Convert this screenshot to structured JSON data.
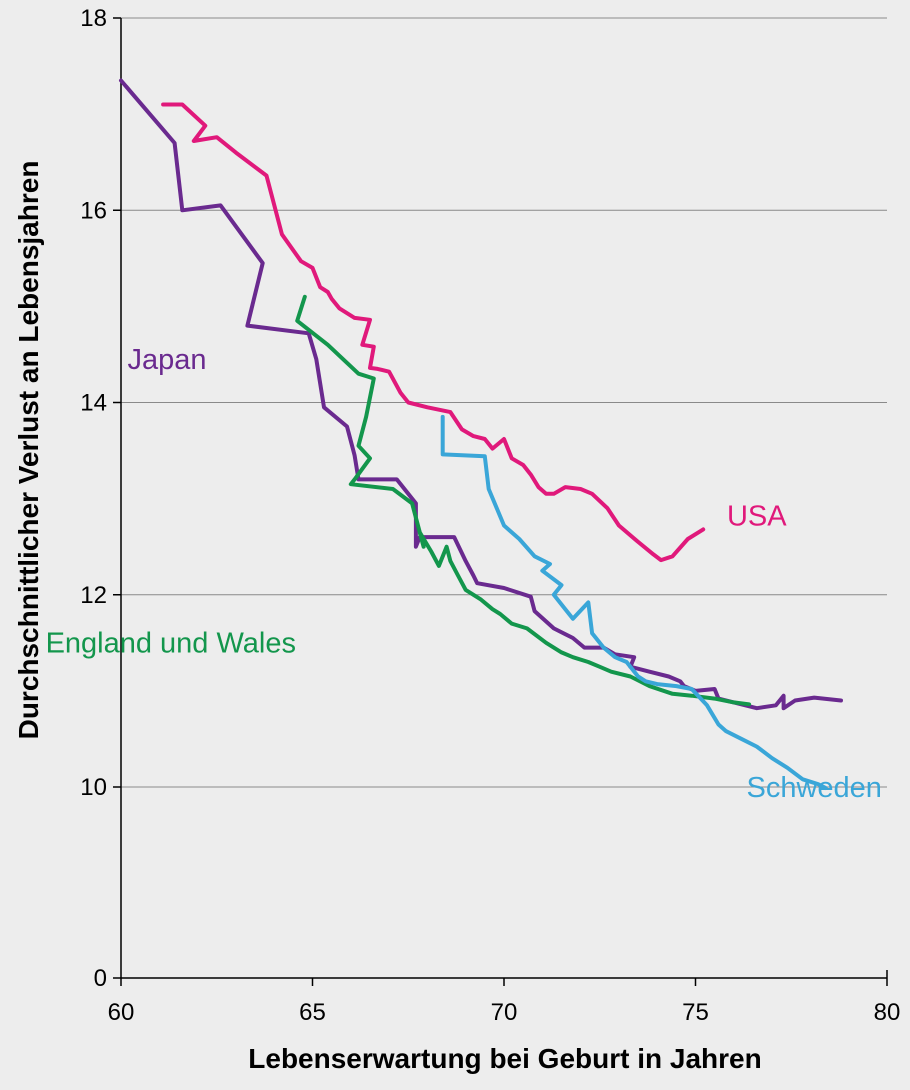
{
  "chart_data": {
    "type": "line",
    "title": "",
    "xlabel": "Lebenserwartung bei Geburt in Jahren",
    "ylabel": "Durchschnittlicher Verlust an Lebensjahren",
    "xlim": [
      60,
      80
    ],
    "ylim": [
      0,
      18
    ],
    "xticks": [
      "60",
      "65",
      "70",
      "75",
      "80"
    ],
    "yticks": [
      "0",
      "10",
      "12",
      "14",
      "16",
      "18"
    ],
    "y_axis_break": true,
    "grid": "horizontal",
    "legend": "inline labels",
    "series": [
      {
        "name": "USA",
        "color": "#e0197b",
        "points": [
          [
            61.1,
            17.1
          ],
          [
            61.6,
            17.1
          ],
          [
            62.2,
            16.88
          ],
          [
            61.9,
            16.72
          ],
          [
            62.5,
            16.76
          ],
          [
            63.0,
            16.6
          ],
          [
            63.8,
            16.36
          ],
          [
            64.2,
            15.75
          ],
          [
            64.7,
            15.47
          ],
          [
            65.0,
            15.4
          ],
          [
            65.2,
            15.2
          ],
          [
            65.4,
            15.15
          ],
          [
            65.5,
            15.08
          ],
          [
            65.7,
            14.98
          ],
          [
            66.1,
            14.88
          ],
          [
            66.5,
            14.86
          ],
          [
            66.3,
            14.6
          ],
          [
            66.6,
            14.58
          ],
          [
            66.5,
            14.36
          ],
          [
            66.7,
            14.35
          ],
          [
            67.0,
            14.32
          ],
          [
            67.3,
            14.1
          ],
          [
            67.5,
            14.0
          ],
          [
            68.0,
            13.95
          ],
          [
            68.6,
            13.9
          ],
          [
            68.9,
            13.72
          ],
          [
            69.2,
            13.65
          ],
          [
            69.5,
            13.62
          ],
          [
            69.7,
            13.52
          ],
          [
            70.0,
            13.62
          ],
          [
            70.2,
            13.42
          ],
          [
            70.5,
            13.35
          ],
          [
            70.7,
            13.25
          ],
          [
            70.9,
            13.12
          ],
          [
            71.1,
            13.05
          ],
          [
            71.3,
            13.05
          ],
          [
            71.6,
            13.12
          ],
          [
            72.0,
            13.1
          ],
          [
            72.3,
            13.05
          ],
          [
            72.7,
            12.9
          ],
          [
            73.0,
            12.72
          ],
          [
            73.5,
            12.55
          ],
          [
            73.9,
            12.42
          ],
          [
            74.1,
            12.36
          ],
          [
            74.4,
            12.4
          ],
          [
            74.8,
            12.58
          ],
          [
            75.2,
            12.68
          ]
        ]
      },
      {
        "name": "Japan",
        "color": "#6a2a8f",
        "points": [
          [
            60.0,
            17.35
          ],
          [
            61.4,
            16.7
          ],
          [
            61.6,
            16.0
          ],
          [
            62.6,
            16.05
          ],
          [
            63.7,
            15.45
          ],
          [
            63.3,
            14.8
          ],
          [
            64.9,
            14.72
          ],
          [
            65.1,
            14.45
          ],
          [
            65.3,
            13.95
          ],
          [
            65.9,
            13.75
          ],
          [
            66.1,
            13.45
          ],
          [
            66.2,
            13.2
          ],
          [
            67.2,
            13.2
          ],
          [
            67.7,
            12.95
          ],
          [
            67.7,
            12.5
          ],
          [
            67.8,
            12.6
          ],
          [
            68.7,
            12.6
          ],
          [
            69.0,
            12.35
          ],
          [
            69.2,
            12.2
          ],
          [
            69.3,
            12.12
          ],
          [
            70.0,
            12.07
          ],
          [
            70.7,
            11.98
          ],
          [
            70.8,
            11.83
          ],
          [
            71.3,
            11.65
          ],
          [
            71.8,
            11.55
          ],
          [
            72.1,
            11.45
          ],
          [
            72.6,
            11.45
          ],
          [
            72.9,
            11.38
          ],
          [
            73.4,
            11.35
          ],
          [
            73.3,
            11.25
          ],
          [
            73.8,
            11.2
          ],
          [
            74.3,
            11.15
          ],
          [
            74.6,
            11.1
          ],
          [
            74.7,
            11.05
          ],
          [
            75.0,
            11.0
          ],
          [
            75.5,
            11.02
          ],
          [
            75.6,
            10.92
          ],
          [
            76.0,
            10.88
          ],
          [
            76.6,
            10.82
          ],
          [
            77.1,
            10.85
          ],
          [
            77.3,
            10.95
          ],
          [
            77.3,
            10.82
          ],
          [
            77.6,
            10.9
          ],
          [
            78.1,
            10.93
          ],
          [
            78.8,
            10.9
          ]
        ]
      },
      {
        "name": "England und Wales",
        "color": "#13964c",
        "points": [
          [
            64.8,
            15.1
          ],
          [
            64.6,
            14.85
          ],
          [
            65.4,
            14.6
          ],
          [
            66.2,
            14.3
          ],
          [
            66.6,
            14.25
          ],
          [
            66.4,
            13.85
          ],
          [
            66.2,
            13.55
          ],
          [
            66.5,
            13.42
          ],
          [
            66.1,
            13.2
          ],
          [
            66.0,
            13.15
          ],
          [
            67.1,
            13.1
          ],
          [
            67.6,
            12.95
          ],
          [
            67.9,
            12.5
          ],
          [
            67.8,
            12.65
          ],
          [
            68.1,
            12.45
          ],
          [
            68.3,
            12.3
          ],
          [
            68.5,
            12.5
          ],
          [
            68.6,
            12.35
          ],
          [
            68.8,
            12.2
          ],
          [
            69.0,
            12.05
          ],
          [
            69.4,
            11.95
          ],
          [
            69.7,
            11.85
          ],
          [
            69.9,
            11.8
          ],
          [
            70.2,
            11.7
          ],
          [
            70.6,
            11.65
          ],
          [
            71.1,
            11.5
          ],
          [
            71.5,
            11.4
          ],
          [
            71.8,
            11.35
          ],
          [
            72.2,
            11.3
          ],
          [
            72.5,
            11.25
          ],
          [
            72.8,
            11.2
          ],
          [
            73.3,
            11.15
          ],
          [
            73.8,
            11.05
          ],
          [
            74.4,
            10.97
          ],
          [
            74.9,
            10.95
          ],
          [
            75.5,
            10.92
          ],
          [
            76.0,
            10.88
          ],
          [
            76.4,
            10.86
          ]
        ]
      },
      {
        "name": "Schweden",
        "color": "#3aa6d8",
        "points": [
          [
            68.4,
            13.85
          ],
          [
            68.4,
            13.46
          ],
          [
            69.5,
            13.44
          ],
          [
            69.6,
            13.1
          ],
          [
            70.0,
            12.72
          ],
          [
            70.4,
            12.58
          ],
          [
            70.8,
            12.4
          ],
          [
            71.2,
            12.32
          ],
          [
            71.0,
            12.25
          ],
          [
            71.5,
            12.1
          ],
          [
            71.3,
            12.0
          ],
          [
            71.6,
            11.85
          ],
          [
            71.8,
            11.75
          ],
          [
            72.2,
            11.92
          ],
          [
            72.3,
            11.6
          ],
          [
            72.6,
            11.45
          ],
          [
            72.9,
            11.35
          ],
          [
            73.2,
            11.3
          ],
          [
            73.5,
            11.15
          ],
          [
            73.7,
            11.1
          ],
          [
            74.0,
            11.07
          ],
          [
            74.5,
            11.05
          ],
          [
            74.9,
            11.02
          ],
          [
            75.3,
            10.85
          ],
          [
            75.6,
            10.65
          ],
          [
            75.8,
            10.58
          ],
          [
            76.2,
            10.5
          ],
          [
            76.6,
            10.42
          ],
          [
            77.0,
            10.3
          ],
          [
            77.4,
            10.2
          ],
          [
            77.8,
            10.08
          ],
          [
            78.2,
            10.03
          ],
          [
            78.4,
            9.95
          ]
        ]
      }
    ],
    "annotations": [
      {
        "text": "USA",
        "series": "USA",
        "x": 76.6,
        "y": 12.72
      },
      {
        "text": "Japan",
        "series": "Japan",
        "x": 61.2,
        "y": 14.35
      },
      {
        "text": "England und Wales",
        "series": "England und Wales",
        "x": 61.3,
        "y": 11.4
      },
      {
        "text": "Schweden",
        "series": "Schweden",
        "x": 78.1,
        "y": 9.48
      }
    ]
  }
}
